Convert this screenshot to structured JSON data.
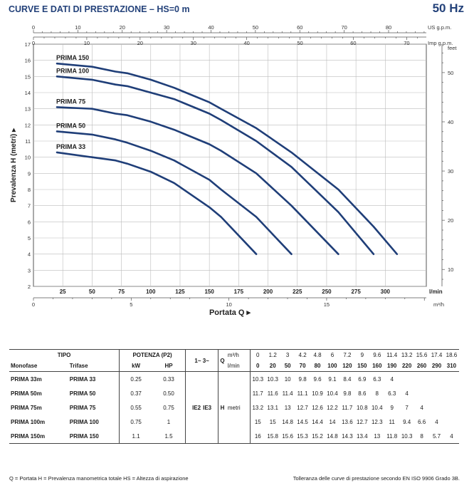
{
  "header": {
    "title": "CURVE E DATI DI PRESTAZIONE  –  HS=0 m",
    "frequency": "50 Hz"
  },
  "chart_data": {
    "type": "line",
    "ylabel": "Prevalenza  H  (metri)",
    "xlabel": "Portata  Q",
    "x_unit_bottom": "l/min",
    "x_unit_m3h": "m³/h",
    "x_unit_top": "US g.p.m.",
    "x_unit_imp": "Imp g.p.m.",
    "y_unit_right": "feet",
    "xlim": [
      0,
      335
    ],
    "ylim": [
      2,
      17
    ],
    "xticks_lmin": [
      25,
      50,
      75,
      100,
      125,
      150,
      175,
      200,
      225,
      250,
      275,
      300
    ],
    "yticks_m": [
      2,
      3,
      4,
      5,
      6,
      7,
      8,
      9,
      10,
      11,
      12,
      13,
      14,
      15,
      16,
      17
    ],
    "ticks_m3h": [
      0,
      5,
      10,
      15
    ],
    "ticks_usgpm": [
      0,
      10,
      20,
      30,
      40,
      50,
      60,
      70,
      80
    ],
    "ticks_impgpm": [
      0,
      10,
      20,
      30,
      40,
      50,
      60,
      70
    ],
    "ticks_feet": [
      10,
      20,
      30,
      40,
      50
    ],
    "grid": true,
    "series": [
      {
        "name": "PRIMA 150",
        "x": [
          20,
          50,
          70,
          80,
          100,
          120,
          150,
          160,
          190,
          220,
          260,
          290,
          310
        ],
        "y": [
          15.8,
          15.6,
          15.3,
          15.2,
          14.8,
          14.3,
          13.4,
          13,
          11.8,
          10.3,
          8,
          5.7,
          4
        ]
      },
      {
        "name": "PRIMA 100",
        "x": [
          20,
          50,
          70,
          80,
          100,
          120,
          150,
          160,
          190,
          220,
          260,
          290
        ],
        "y": [
          15,
          14.8,
          14.5,
          14.4,
          14,
          13.6,
          12.7,
          12.3,
          11,
          9.4,
          6.6,
          4
        ]
      },
      {
        "name": "PRIMA 75",
        "x": [
          20,
          50,
          70,
          80,
          100,
          120,
          150,
          160,
          190,
          220,
          260
        ],
        "y": [
          13.1,
          13,
          12.7,
          12.6,
          12.2,
          11.7,
          10.8,
          10.4,
          9,
          7,
          4
        ]
      },
      {
        "name": "PRIMA 50",
        "x": [
          20,
          50,
          70,
          80,
          100,
          120,
          150,
          160,
          190,
          220
        ],
        "y": [
          11.6,
          11.4,
          11.1,
          10.9,
          10.4,
          9.8,
          8.6,
          8,
          6.3,
          4
        ]
      },
      {
        "name": "PRIMA 33",
        "x": [
          20,
          50,
          70,
          80,
          100,
          120,
          150,
          160,
          190
        ],
        "y": [
          10.3,
          10,
          9.8,
          9.6,
          9.1,
          8.4,
          6.9,
          6.3,
          4
        ]
      }
    ]
  },
  "table": {
    "tipo": "TIPO",
    "potenza": "POTENZA (P2)",
    "monofase": "Monofase",
    "trifase": "Trifase",
    "kw": "kW",
    "hp": "HP",
    "phase": "1~ 3~",
    "q_label": "Q",
    "m3h_label": "m³/h",
    "lmin_label": "l/min",
    "ie2": "IE2",
    "ie3": "IE3",
    "h_label": "H",
    "metri": "metri",
    "q_m3h": [
      "0",
      "1.2",
      "3",
      "4.2",
      "4.8",
      "6",
      "7.2",
      "9",
      "9.6",
      "11.4",
      "13.2",
      "15.6",
      "17.4",
      "18.6"
    ],
    "q_lmin": [
      "0",
      "20",
      "50",
      "70",
      "80",
      "100",
      "120",
      "150",
      "160",
      "190",
      "220",
      "260",
      "290",
      "310"
    ],
    "rows": [
      {
        "mono": "PRIMA 33m",
        "tri": "PRIMA 33",
        "kw": "0.25",
        "hp": "0.33",
        "h": [
          "10.3",
          "10.3",
          "10",
          "9.8",
          "9.6",
          "9.1",
          "8.4",
          "6.9",
          "6.3",
          "4",
          "",
          "",
          "",
          ""
        ]
      },
      {
        "mono": "PRIMA 50m",
        "tri": "PRIMA 50",
        "kw": "0.37",
        "hp": "0.50",
        "h": [
          "11.7",
          "11.6",
          "11.4",
          "11.1",
          "10.9",
          "10.4",
          "9.8",
          "8.6",
          "8",
          "6.3",
          "4",
          "",
          "",
          ""
        ]
      },
      {
        "mono": "PRIMA 75m",
        "tri": "PRIMA 75",
        "kw": "0.55",
        "hp": "0.75",
        "h": [
          "13.2",
          "13.1",
          "13",
          "12.7",
          "12.6",
          "12.2",
          "11.7",
          "10.8",
          "10.4",
          "9",
          "7",
          "4",
          "",
          ""
        ]
      },
      {
        "mono": "PRIMA 100m",
        "tri": "PRIMA 100",
        "kw": "0.75",
        "hp": "1",
        "h": [
          "15",
          "15",
          "14.8",
          "14.5",
          "14.4",
          "14",
          "13.6",
          "12.7",
          "12.3",
          "11",
          "9.4",
          "6.6",
          "4",
          ""
        ]
      },
      {
        "mono": "PRIMA 150m",
        "tri": "PRIMA 150",
        "kw": "1.1",
        "hp": "1.5",
        "h": [
          "16",
          "15.8",
          "15.6",
          "15.3",
          "15.2",
          "14.8",
          "14.3",
          "13.4",
          "13",
          "11.8",
          "10.3",
          "8",
          "5.7",
          "4"
        ]
      }
    ]
  },
  "footer": {
    "legend": "Q = Portata   H = Prevalenza manometrica totale   HS = Altezza di aspirazione",
    "note": "Tolleranza delle curve di prestazione secondo EN ISO 9906 Grado 3B."
  },
  "colors": {
    "curve": "#1f3e78",
    "title": "#24427a",
    "grid": "#bcbcbc"
  }
}
